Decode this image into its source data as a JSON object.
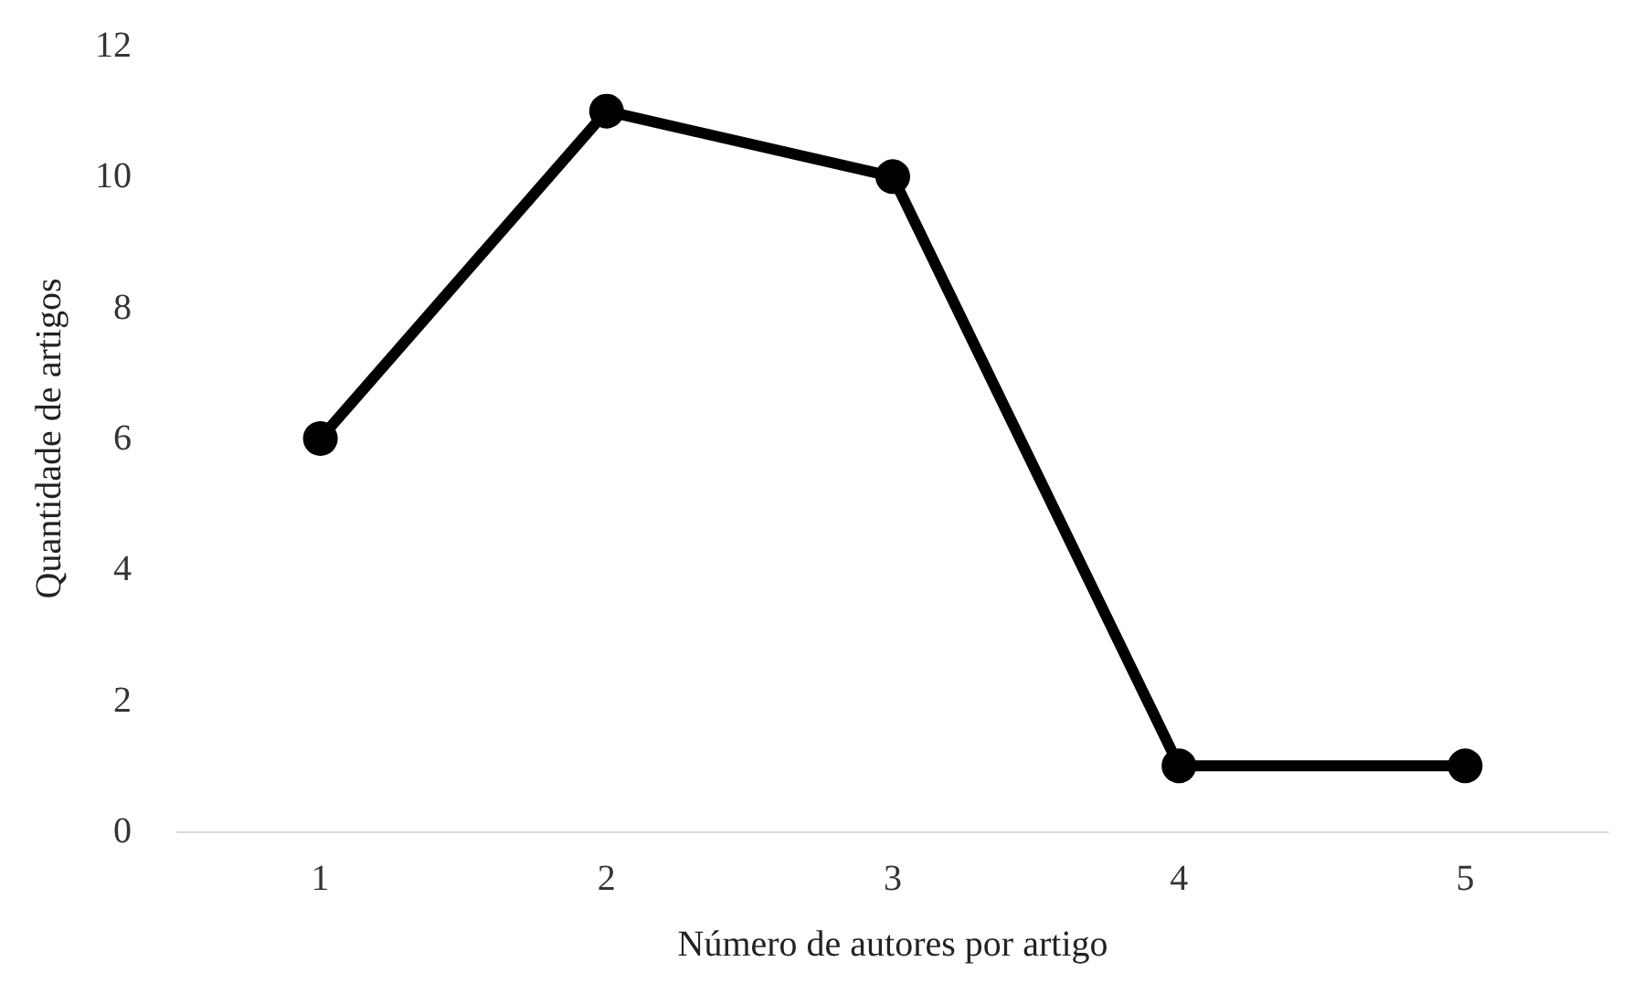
{
  "chart_data": {
    "type": "line",
    "xlabel": "Número de autores por artigo",
    "ylabel": "Quantidade de artigos",
    "categories": [
      "1",
      "2",
      "3",
      "4",
      "5"
    ],
    "series": [
      {
        "color": "#000000",
        "values": [
          6,
          11,
          10,
          1,
          1
        ]
      }
    ],
    "ylim": [
      0,
      12
    ],
    "yticks": [
      0,
      2,
      4,
      6,
      8,
      10,
      12
    ],
    "grid": false,
    "marker": "circle",
    "line_style": "solid"
  }
}
